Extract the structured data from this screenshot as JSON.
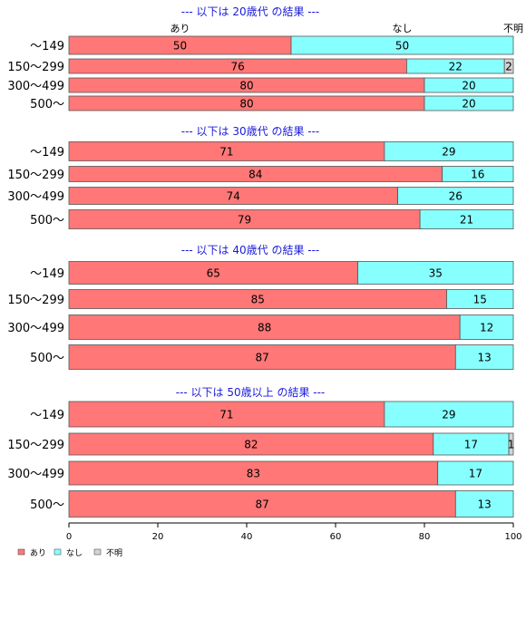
{
  "chart_data": {
    "type": "bar",
    "orientation": "horizontal-stacked",
    "column_headers": [
      "あり",
      "なし",
      "不明"
    ],
    "series": [
      {
        "name": "あり",
        "color": "#ff7777"
      },
      {
        "name": "なし",
        "color": "#88ffff"
      },
      {
        "name": "不明",
        "color": "#d3d3d3"
      }
    ],
    "xlim": [
      0,
      100
    ],
    "xticks": [
      0,
      20,
      40,
      60,
      80,
      100
    ],
    "groups": [
      {
        "title": "--- 以下は 20歳代 の結果 ---",
        "rows": [
          {
            "category": "～149",
            "values": [
              50,
              50,
              0
            ]
          },
          {
            "category": "150～299",
            "values": [
              76,
              22,
              2
            ]
          },
          {
            "category": "300～499",
            "values": [
              80,
              20,
              0
            ]
          },
          {
            "category": "500～",
            "values": [
              80,
              20,
              0
            ]
          }
        ]
      },
      {
        "title": "--- 以下は 30歳代 の結果 ---",
        "rows": [
          {
            "category": "～149",
            "values": [
              71,
              29,
              0
            ]
          },
          {
            "category": "150～299",
            "values": [
              84,
              16,
              0
            ]
          },
          {
            "category": "300～499",
            "values": [
              74,
              26,
              0
            ]
          },
          {
            "category": "500～",
            "values": [
              79,
              21,
              0
            ]
          }
        ]
      },
      {
        "title": "--- 以下は 40歳代 の結果 ---",
        "rows": [
          {
            "category": "～149",
            "values": [
              65,
              35,
              0
            ]
          },
          {
            "category": "150～299",
            "values": [
              85,
              15,
              0
            ]
          },
          {
            "category": "300～499",
            "values": [
              88,
              12,
              0
            ]
          },
          {
            "category": "500～",
            "values": [
              87,
              13,
              0
            ]
          }
        ]
      },
      {
        "title": "--- 以下は 50歳以上 の結果 ---",
        "rows": [
          {
            "category": "～149",
            "values": [
              71,
              29,
              0
            ]
          },
          {
            "category": "150～299",
            "values": [
              82,
              17,
              1
            ]
          },
          {
            "category": "300～499",
            "values": [
              83,
              17,
              0
            ]
          },
          {
            "category": "500～",
            "values": [
              87,
              13,
              0
            ]
          }
        ]
      }
    ],
    "legend_position": "bottom-left",
    "grid": false
  }
}
